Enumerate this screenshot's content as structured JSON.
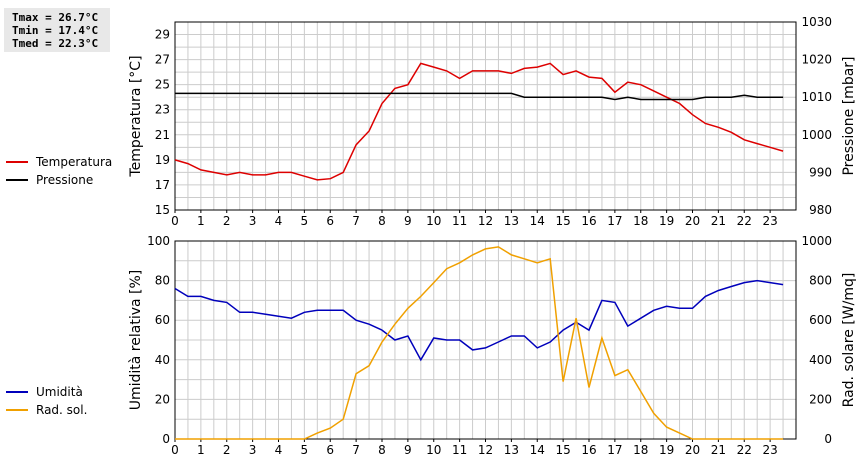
{
  "stats": {
    "tmax": "Tmax = 26.7°C",
    "tmin": "Tmin = 17.4°C",
    "tmed": "Tmed = 22.3°C"
  },
  "colors": {
    "temperature": "#dd0000",
    "pressure": "#000000",
    "humidity": "#0000bb",
    "solar": "#f0a000",
    "grid": "#cccccc"
  },
  "legend_top": [
    {
      "label": "Temperatura",
      "color": "#dd0000"
    },
    {
      "label": "Pressione",
      "color": "#000000"
    }
  ],
  "legend_bottom": [
    {
      "label": "Umidità",
      "color": "#0000bb"
    },
    {
      "label": "Rad. sol.",
      "color": "#f0a000"
    }
  ],
  "chart_data": [
    {
      "type": "line",
      "xlabel": "",
      "ylabel": "Temperatura [°C]",
      "y2label": "Pressione [mbar]",
      "xlim": [
        0,
        24
      ],
      "ylim": [
        15,
        30
      ],
      "y2lim": [
        980,
        1030
      ],
      "xticks": [
        "0",
        "1",
        "2",
        "3",
        "4",
        "5",
        "6",
        "7",
        "8",
        "9",
        "10",
        "11",
        "12",
        "13",
        "14",
        "15",
        "16",
        "17",
        "18",
        "19",
        "20",
        "21",
        "22",
        "23"
      ],
      "yticks": [
        "15",
        "17",
        "19",
        "21",
        "23",
        "25",
        "27",
        "29"
      ],
      "y2ticks": [
        "980",
        "990",
        "1000",
        "1010",
        "1020",
        "1030"
      ],
      "grid": true,
      "series": [
        {
          "name": "Temperatura",
          "axis": "left",
          "color": "#dd0000",
          "x": [
            0,
            0.5,
            1,
            1.5,
            2,
            2.5,
            3,
            3.5,
            4,
            4.5,
            5,
            5.5,
            6,
            6.5,
            7,
            7.5,
            8,
            8.5,
            9,
            9.5,
            10,
            10.5,
            11,
            11.5,
            12,
            12.5,
            13,
            13.5,
            14,
            14.5,
            15,
            15.5,
            16,
            16.5,
            17,
            17.5,
            18,
            18.5,
            19,
            19.5,
            20,
            20.5,
            21,
            21.5,
            22,
            22.5,
            23,
            23.5
          ],
          "y": [
            19.0,
            18.7,
            18.2,
            18.0,
            17.8,
            18.0,
            17.8,
            17.8,
            18.0,
            18.0,
            17.7,
            17.4,
            17.5,
            18.0,
            20.2,
            21.3,
            23.5,
            24.7,
            25.0,
            26.7,
            26.4,
            26.1,
            25.5,
            26.1,
            26.1,
            26.1,
            25.9,
            26.3,
            26.4,
            26.7,
            25.8,
            26.1,
            25.6,
            25.5,
            24.4,
            25.2,
            25.0,
            24.5,
            24.0,
            23.5,
            22.6,
            21.9,
            21.6,
            21.2,
            20.6,
            20.3,
            20.0,
            19.7
          ]
        },
        {
          "name": "Pressione",
          "axis": "right",
          "color": "#000000",
          "x": [
            0,
            0.5,
            1,
            1.5,
            2,
            2.5,
            3,
            3.5,
            4,
            4.5,
            5,
            5.5,
            6,
            6.5,
            7,
            7.5,
            8,
            8.5,
            9,
            9.5,
            10,
            10.5,
            11,
            11.5,
            12,
            12.5,
            13,
            13.5,
            14,
            14.5,
            15,
            15.5,
            16,
            16.5,
            17,
            17.5,
            18,
            18.5,
            19,
            19.5,
            20,
            20.5,
            21,
            21.5,
            22,
            22.5,
            23,
            23.5
          ],
          "y": [
            1011,
            1011,
            1011,
            1011,
            1011,
            1011,
            1011,
            1011,
            1011,
            1011,
            1011,
            1011,
            1011,
            1011,
            1011,
            1011,
            1011,
            1011,
            1011,
            1011,
            1011,
            1011,
            1011,
            1011,
            1011,
            1011,
            1011,
            1010,
            1010,
            1010,
            1010,
            1010,
            1010,
            1010,
            1009.4,
            1010,
            1009.4,
            1009.4,
            1009.4,
            1009.4,
            1009.4,
            1010,
            1010,
            1010,
            1010.5,
            1010,
            1010,
            1010
          ]
        }
      ]
    },
    {
      "type": "line",
      "xlabel": "",
      "ylabel": "Umidità relativa [%]",
      "y2label": "Rad. solare [W/mq]",
      "xlim": [
        0,
        24
      ],
      "ylim": [
        0,
        100
      ],
      "y2lim": [
        0,
        1000
      ],
      "xticks": [
        "0",
        "1",
        "2",
        "3",
        "4",
        "5",
        "6",
        "7",
        "8",
        "9",
        "10",
        "11",
        "12",
        "13",
        "14",
        "15",
        "16",
        "17",
        "18",
        "19",
        "20",
        "21",
        "22",
        "23"
      ],
      "yticks": [
        "0",
        "20",
        "40",
        "60",
        "80",
        "100"
      ],
      "y2ticks": [
        "0",
        "200",
        "400",
        "600",
        "800",
        "1000"
      ],
      "grid": true,
      "series": [
        {
          "name": "Umidità",
          "axis": "left",
          "color": "#0000bb",
          "x": [
            0,
            0.5,
            1,
            1.5,
            2,
            2.5,
            3,
            3.5,
            4,
            4.5,
            5,
            5.5,
            6,
            6.5,
            7,
            7.5,
            8,
            8.5,
            9,
            9.5,
            10,
            10.5,
            11,
            11.5,
            12,
            12.5,
            13,
            13.5,
            14,
            14.5,
            15,
            15.5,
            16,
            16.5,
            17,
            17.5,
            18,
            18.5,
            19,
            19.5,
            20,
            20.5,
            21,
            21.5,
            22,
            22.5,
            23,
            23.5
          ],
          "y": [
            76,
            72,
            72,
            70,
            69,
            64,
            64,
            63,
            62,
            61,
            64,
            65,
            65,
            65,
            60,
            58,
            55,
            50,
            52,
            40,
            51,
            50,
            50,
            45,
            46,
            49,
            52,
            52,
            46,
            49,
            55,
            59,
            55,
            70,
            69,
            57,
            61,
            65,
            67,
            66,
            66,
            72,
            75,
            77,
            79,
            80,
            79,
            78
          ]
        },
        {
          "name": "Rad. sol.",
          "axis": "right",
          "color": "#f0a000",
          "x": [
            0,
            0.5,
            1,
            1.5,
            2,
            2.5,
            3,
            3.5,
            4,
            4.5,
            5,
            5.5,
            6,
            6.5,
            7,
            7.5,
            8,
            8.5,
            9,
            9.5,
            10,
            10.5,
            11,
            11.5,
            12,
            12.5,
            13,
            13.5,
            14,
            14.5,
            15,
            15.5,
            16,
            16.5,
            17,
            17.5,
            18,
            18.5,
            19,
            19.5,
            20,
            20.5,
            21,
            21.5,
            22,
            22.5,
            23,
            23.5
          ],
          "y": [
            0,
            0,
            0,
            0,
            0,
            0,
            0,
            0,
            0,
            0,
            0,
            30,
            55,
            100,
            330,
            370,
            490,
            580,
            660,
            720,
            790,
            860,
            890,
            930,
            960,
            970,
            930,
            910,
            890,
            910,
            290,
            610,
            260,
            510,
            320,
            350,
            240,
            130,
            60,
            30,
            0,
            0,
            0,
            0,
            0,
            0,
            0,
            0
          ]
        }
      ]
    }
  ]
}
